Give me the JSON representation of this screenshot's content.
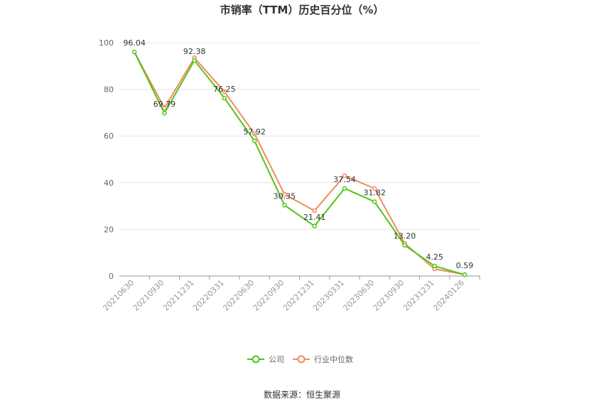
{
  "chart_data": {
    "type": "line",
    "title": "市销率（TTM）历史百分位（%）",
    "categories": [
      "20210630",
      "20210930",
      "20211231",
      "20220331",
      "20220630",
      "20220930",
      "20221231",
      "20230331",
      "20230630",
      "20230930",
      "20231231",
      "20240126"
    ],
    "ylim": [
      0,
      100
    ],
    "yticks": [
      0,
      20,
      40,
      60,
      80,
      100
    ],
    "grid": true,
    "legend_position": "bottom-center",
    "series": [
      {
        "name": "公司",
        "color": "#52c41a",
        "values": [
          96.04,
          69.79,
          92.38,
          76.25,
          57.92,
          30.35,
          21.41,
          37.54,
          31.82,
          13.2,
          4.25,
          0.59
        ],
        "labels": [
          "96.04",
          "69.79",
          "92.38",
          "76.25",
          "57.92",
          "30.35",
          "21.41",
          "37.54",
          "31.82",
          "13.20",
          "4.25",
          "0.59"
        ]
      },
      {
        "name": "行业中位数",
        "color": "#f28b5e",
        "values": [
          96.0,
          72.0,
          93.5,
          79.0,
          61.0,
          35.0,
          28.0,
          43.0,
          37.5,
          14.0,
          3.0,
          0.6
        ]
      }
    ]
  },
  "source": "数据来源：恒生聚源"
}
